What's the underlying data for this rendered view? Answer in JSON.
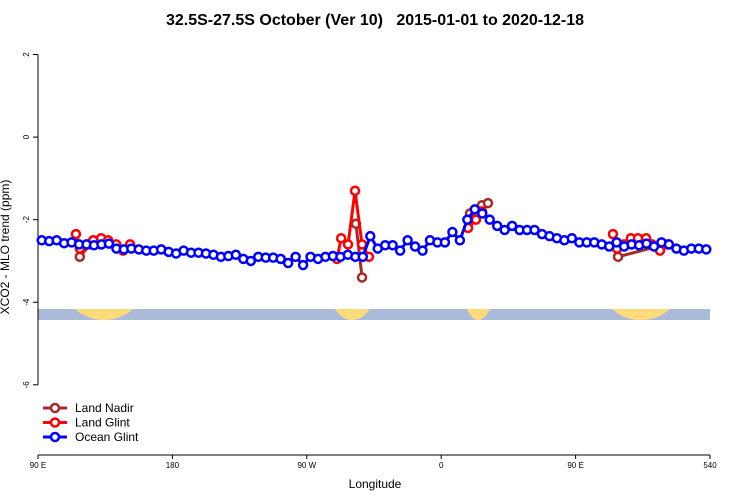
{
  "chart_data": {
    "type": "line",
    "title": "32.5S-27.5S October (Ver 10)   2015-01-01 to 2020-12-18",
    "x_label": "Longitude",
    "y_label": "XCO2 - MLO trend (ppm)",
    "xlim": [
      90,
      540
    ],
    "ylim": [
      -7.7,
      2.4
    ],
    "xticks": [
      {
        "value": 90,
        "label": "90 E"
      },
      180,
      {
        "value": 270,
        "label": "90 W"
      },
      {
        "value": 360,
        "label": "0"
      },
      {
        "value": 450,
        "label": "90 E"
      },
      540
    ],
    "yticks": [
      2,
      0,
      -2,
      -4,
      -6
    ],
    "legend": "bottom-left",
    "series": [
      {
        "name": "Land Nadir",
        "color": "#a52a2a",
        "x": [
          118,
          125,
          132,
          null,
          302.9,
          307,
          null,
          379.3,
          387.3,
          391.3,
          null,
          478.4,
          509.9
        ],
        "values": [
          -2.9,
          -2.6,
          -2.6,
          null,
          -2.1,
          -3.4,
          null,
          -1.85,
          -1.65,
          -1.6,
          null,
          -2.9,
          -2.6
        ]
      },
      {
        "name": "Land Glint",
        "color": "#ff0000",
        "x": [
          115.4,
          118,
          122.6,
          127,
          132.3,
          137,
          142.4,
          147,
          151.7,
          null,
          290.2,
          293,
          297.6,
          302.3,
          307,
          311.6,
          null,
          378,
          383.3,
          387.3,
          null,
          475,
          477.7,
          482.4,
          487,
          491.8,
          497.2,
          501.2,
          506.5,
          511.9
        ],
        "values": [
          -2.35,
          -2.7,
          -2.6,
          -2.5,
          -2.45,
          -2.5,
          -2.6,
          -2.75,
          -2.6,
          null,
          -2.95,
          -2.45,
          -2.6,
          -1.3,
          -2.6,
          -2.9,
          null,
          -2.2,
          -2.0,
          -1.8,
          null,
          -2.35,
          -2.7,
          -2.6,
          -2.45,
          -2.45,
          -2.45,
          -2.6,
          -2.75,
          -2.6
        ]
      },
      {
        "name": "Ocean Glint",
        "color": "#0000ff",
        "x": [
          92.5,
          97.5,
          102.5,
          107.5,
          112.5,
          117.5,
          122.5,
          127.5,
          132.5,
          137.5,
          142.5,
          147.5,
          152.5,
          157.5,
          162.5,
          167.5,
          172.5,
          177.5,
          182.5,
          187.5,
          192.5,
          197.5,
          202.5,
          207.5,
          212.5,
          217.5,
          222.5,
          227.5,
          232.5,
          237.5,
          242.5,
          247.5,
          252.5,
          257.5,
          262.5,
          267.5,
          272.5,
          277.5,
          282.5,
          287.5,
          292.5,
          297.5,
          302.5,
          307.5,
          312.5,
          317.5,
          322.5,
          327.5,
          332.5,
          337.5,
          342.5,
          347.5,
          352.5,
          357.5,
          362.5,
          367.5,
          372.5,
          377.5,
          382.5,
          387.5,
          392.5,
          397.5,
          402.5,
          407.5,
          412.5,
          417.5,
          422.5,
          427.5,
          432.5,
          437.5,
          442.5,
          447.5,
          452.5,
          457.5,
          462.5,
          467.5,
          472.5,
          477.5,
          482.5,
          487.5,
          492.5,
          497.5,
          502.5,
          507.5,
          512.5,
          517.5,
          522.5,
          527.5,
          532.5,
          537.5
        ],
        "values": [
          -2.5,
          -2.52,
          -2.5,
          -2.57,
          -2.55,
          -2.6,
          -2.6,
          -2.62,
          -2.6,
          -2.58,
          -2.7,
          -2.72,
          -2.7,
          -2.72,
          -2.75,
          -2.75,
          -2.72,
          -2.78,
          -2.82,
          -2.75,
          -2.8,
          -2.8,
          -2.82,
          -2.85,
          -2.9,
          -2.88,
          -2.85,
          -2.95,
          -3.0,
          -2.9,
          -2.92,
          -2.92,
          -2.95,
          -3.05,
          -2.9,
          -3.1,
          -2.9,
          -2.95,
          -2.9,
          -2.88,
          -2.9,
          -2.85,
          -2.9,
          -2.9,
          -2.4,
          -2.7,
          -2.62,
          -2.62,
          -2.75,
          -2.5,
          -2.65,
          -2.75,
          -2.5,
          -2.55,
          -2.55,
          -2.3,
          -2.5,
          -2.0,
          -1.75,
          -1.85,
          -2.0,
          -2.15,
          -2.25,
          -2.15,
          -2.25,
          -2.25,
          -2.25,
          -2.35,
          -2.4,
          -2.45,
          -2.5,
          -2.45,
          -2.55,
          -2.55,
          -2.55,
          -2.6,
          -2.65,
          -2.55,
          -2.65,
          -2.6,
          -2.62,
          -2.58,
          -2.65,
          -2.55,
          -2.6,
          -2.7,
          -2.75,
          -2.7,
          -2.7,
          -2.72
        ]
      }
    ]
  }
}
